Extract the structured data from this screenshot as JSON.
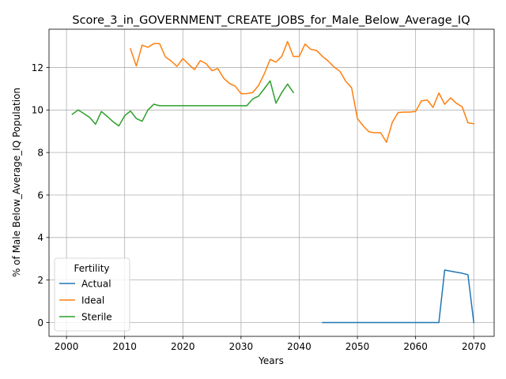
{
  "chart_data": {
    "type": "line",
    "title": "Score_3_in_GOVERNMENT_CREATE_JOBS_for_Male_Below_Average_IQ",
    "xlabel": "Years",
    "ylabel": "% of Male Below_Average_IQ Population",
    "xlim": [
      1997,
      2073.5
    ],
    "ylim": [
      -0.65,
      13.8
    ],
    "xticks": [
      2000,
      2010,
      2020,
      2030,
      2040,
      2050,
      2060,
      2070
    ],
    "yticks": [
      0,
      2,
      4,
      6,
      8,
      10,
      12
    ],
    "grid": true,
    "legend": {
      "title": "Fertility",
      "placement": "lower left"
    },
    "series": [
      {
        "name": "Actual",
        "color": "#1f77b4",
        "x": [
          2044,
          2045,
          2046,
          2047,
          2048,
          2049,
          2050,
          2051,
          2052,
          2053,
          2054,
          2055,
          2056,
          2057,
          2058,
          2059,
          2060,
          2061,
          2062,
          2063,
          2064,
          2065,
          2066,
          2067,
          2068,
          2069,
          2070
        ],
        "y": [
          0,
          0,
          0,
          0,
          0,
          0,
          0,
          0,
          0,
          0,
          0,
          0,
          0,
          0,
          0,
          0,
          0,
          0,
          0,
          0,
          0,
          2.47,
          2.42,
          2.37,
          2.32,
          2.25,
          0
        ]
      },
      {
        "name": "Ideal",
        "color": "#ff7f0e",
        "x": [
          2011,
          2012,
          2013,
          2014,
          2015,
          2016,
          2017,
          2018,
          2019,
          2020,
          2021,
          2022,
          2023,
          2024,
          2025,
          2026,
          2027,
          2028,
          2029,
          2030,
          2031,
          2032,
          2033,
          2034,
          2035,
          2036,
          2037,
          2038,
          2039,
          2040,
          2041,
          2042,
          2043,
          2044,
          2045,
          2046,
          2047,
          2048,
          2049,
          2050,
          2051,
          2052,
          2053,
          2054,
          2055,
          2056,
          2057,
          2058,
          2059,
          2060,
          2061,
          2062,
          2063,
          2064,
          2065,
          2066,
          2067,
          2068,
          2069,
          2070
        ],
        "y": [
          12.88,
          12.07,
          13.05,
          12.95,
          13.12,
          13.12,
          12.5,
          12.3,
          12.05,
          12.42,
          12.15,
          11.9,
          12.32,
          12.18,
          11.85,
          11.95,
          11.5,
          11.25,
          11.12,
          10.77,
          10.77,
          10.82,
          11.15,
          11.7,
          12.38,
          12.25,
          12.52,
          13.22,
          12.52,
          12.52,
          13.1,
          12.85,
          12.8,
          12.52,
          12.3,
          12.02,
          11.82,
          11.35,
          11.05,
          9.6,
          9.25,
          8.97,
          8.93,
          8.93,
          8.48,
          9.42,
          9.88,
          9.9,
          9.9,
          9.93,
          10.43,
          10.47,
          10.12,
          10.8,
          10.27,
          10.57,
          10.32,
          10.15,
          9.4,
          9.35
        ]
      },
      {
        "name": "Sterile",
        "color": "#2ca02c",
        "x": [
          2001,
          2002,
          2003,
          2004,
          2005,
          2006,
          2007,
          2008,
          2009,
          2010,
          2011,
          2012,
          2013,
          2014,
          2015,
          2016,
          2017,
          2018,
          2019,
          2020,
          2021,
          2022,
          2023,
          2024,
          2025,
          2026,
          2027,
          2028,
          2029,
          2030,
          2031,
          2032,
          2033,
          2034,
          2035,
          2036,
          2037,
          2038,
          2039
        ],
        "y": [
          9.8,
          10.0,
          9.83,
          9.65,
          9.33,
          9.93,
          9.7,
          9.45,
          9.25,
          9.73,
          9.95,
          9.6,
          9.47,
          10.0,
          10.27,
          10.2,
          10.2,
          10.2,
          10.2,
          10.2,
          10.2,
          10.2,
          10.2,
          10.2,
          10.2,
          10.2,
          10.2,
          10.2,
          10.2,
          10.2,
          10.2,
          10.52,
          10.65,
          11.0,
          11.37,
          10.32,
          10.82,
          11.22,
          10.82
        ]
      }
    ]
  }
}
